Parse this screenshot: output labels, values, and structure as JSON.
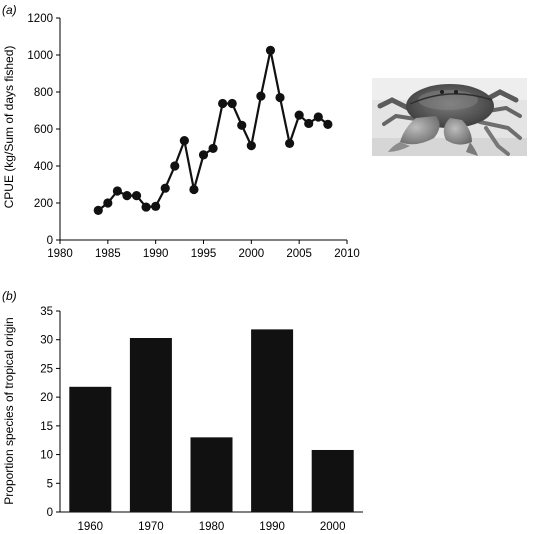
{
  "chart_data": [
    {
      "type": "line",
      "panel_label": "(a)",
      "title": "",
      "xlabel": "",
      "ylabel": "CPUE (kg/Sum of days fished)",
      "xlim": [
        1980,
        2010
      ],
      "ylim": [
        0,
        1200
      ],
      "xticks": [
        1980,
        1985,
        1990,
        1995,
        2000,
        2005,
        2010
      ],
      "yticks": [
        0,
        200,
        400,
        600,
        800,
        1000,
        1200
      ],
      "grid": false,
      "markers": "filled-circle",
      "x": [
        1984,
        1985,
        1986,
        1987,
        1988,
        1989,
        1990,
        1991,
        1992,
        1993,
        1994,
        1995,
        1996,
        1997,
        1998,
        1999,
        2000,
        2001,
        2002,
        2003,
        2004,
        2005,
        2006,
        2007,
        2008
      ],
      "values": [
        160,
        200,
        265,
        240,
        240,
        178,
        182,
        280,
        400,
        537,
        273,
        460,
        495,
        738,
        738,
        620,
        510,
        778,
        1025,
        770,
        522,
        675,
        630,
        665,
        625
      ],
      "inset_image": "mud-crab-photo"
    },
    {
      "type": "bar",
      "panel_label": "(b)",
      "title": "",
      "xlabel": "",
      "ylabel": "Proportion species of tropical origin",
      "ylim": [
        0,
        35
      ],
      "yticks": [
        0,
        5,
        10,
        15,
        20,
        25,
        30,
        35
      ],
      "grid": false,
      "categories": [
        "1960",
        "1970",
        "1980",
        "1990",
        "2000"
      ],
      "values": [
        21.8,
        30.3,
        13.0,
        31.8,
        10.8
      ],
      "bar_color": "#111111"
    }
  ]
}
